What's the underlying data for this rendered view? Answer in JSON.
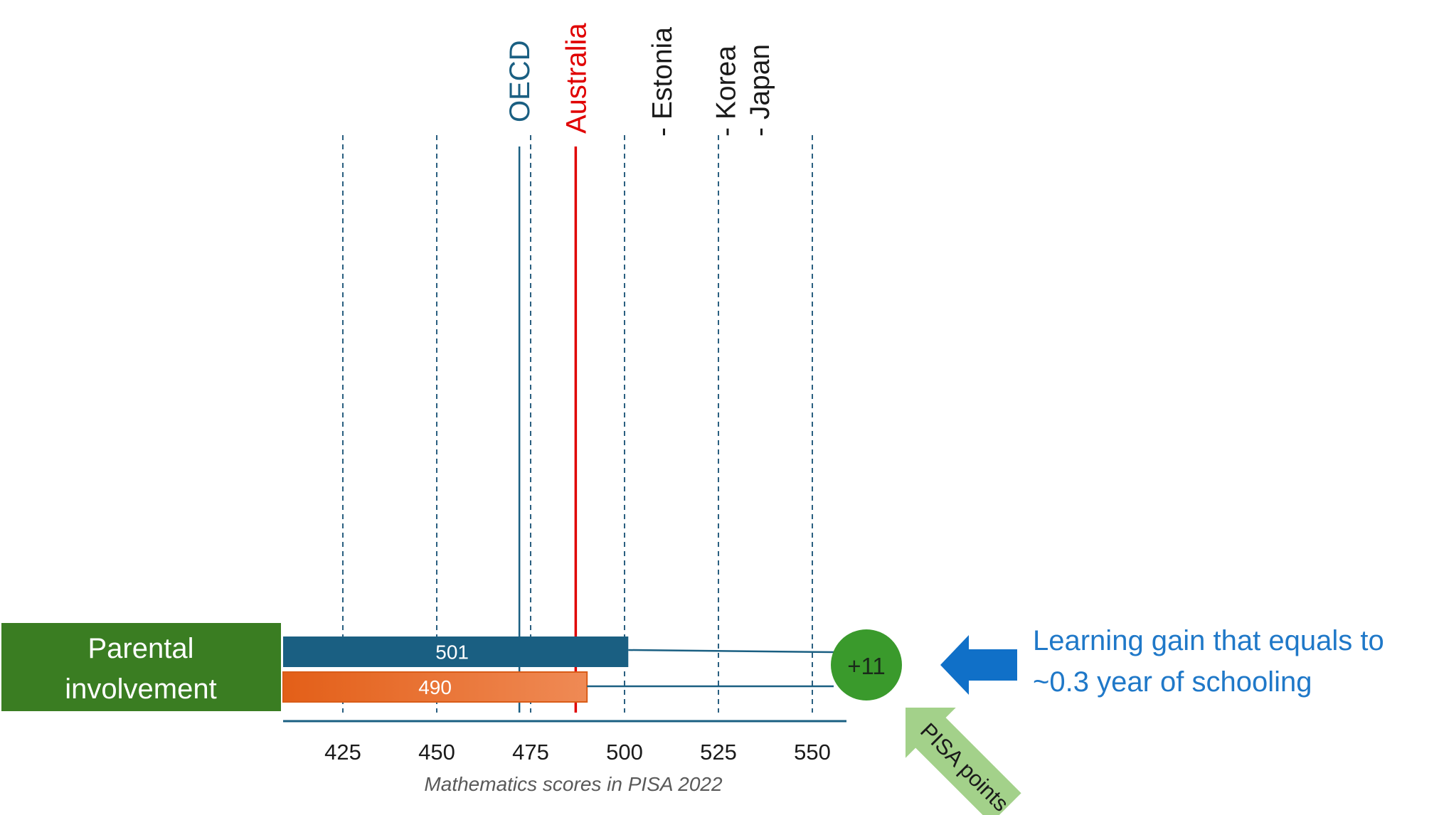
{
  "chart_data": {
    "type": "bar",
    "orientation": "horizontal",
    "category_label": "Parental involvement",
    "series": [
      {
        "value": 501,
        "color": "#1a5f82"
      },
      {
        "value": 490,
        "color": "#e8742f"
      }
    ],
    "difference_label": "+11",
    "xlabel": "Mathematics scores in PISA 2022",
    "xticks": [
      425,
      450,
      475,
      500,
      525,
      550
    ],
    "xlim": [
      410,
      558
    ],
    "grid": "vertical dashed",
    "reference_lines": [
      {
        "label": "OECD",
        "value": 472,
        "color": "#1a5f82",
        "style": "solid"
      },
      {
        "label": "Australia",
        "value": 487,
        "color": "#e00000",
        "style": "solid"
      }
    ],
    "country_markers": [
      {
        "label": "- Estonia",
        "value": 510
      },
      {
        "label": "- Korea",
        "value": 527
      },
      {
        "label": "- Japan",
        "value": 536
      }
    ],
    "annotations": {
      "gain_text_line1": "Learning gain that equals to",
      "gain_text_line2": "~0.3 year of schooling",
      "arrow_label": "PISA points"
    },
    "colors": {
      "category_box": "#3a7d22",
      "badge": "#3a9a2c",
      "gain_text": "#1f78c8",
      "blue_arrow": "#1070c8",
      "green_arrow": "#a3d18a",
      "grid": "#2a5f80"
    }
  }
}
